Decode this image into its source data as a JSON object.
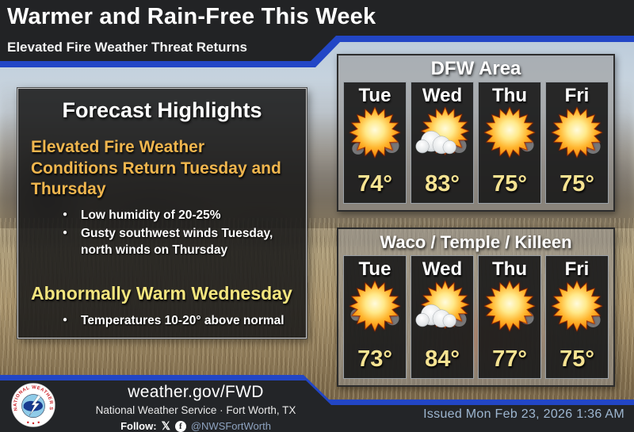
{
  "colors": {
    "accent_blue": "#2246c6",
    "banner_black": "#222325",
    "gold_heading": "#f0b64e",
    "pale_yellow_heading": "#f3e57e",
    "temp_yellow": "#f6e392",
    "issued_text": "#9db6d0"
  },
  "header": {
    "title": "Warmer and Rain-Free This Week",
    "subtitle": "Elevated Fire Weather Threat Returns"
  },
  "highlights": {
    "title": "Forecast Highlights",
    "sections": [
      {
        "heading": "Elevated Fire Weather Conditions Return Tuesday and Thursday",
        "bullets": [
          "Low humidity of 20-25%",
          "Gusty southwest winds Tuesday, north winds on Thursday"
        ]
      },
      {
        "heading": "Abnormally Warm Wednesday",
        "bullets": [
          "Temperatures 10-20° above normal"
        ]
      }
    ]
  },
  "forecast_panels": [
    {
      "title": "DFW Area",
      "days": [
        {
          "label": "Tue",
          "icon": "sunny",
          "temp": "74°"
        },
        {
          "label": "Wed",
          "icon": "mostly-sunny",
          "temp": "83°"
        },
        {
          "label": "Thu",
          "icon": "sunny",
          "temp": "75°"
        },
        {
          "label": "Fri",
          "icon": "sunny",
          "temp": "75°"
        }
      ]
    },
    {
      "title": "Waco / Temple / Killeen",
      "days": [
        {
          "label": "Tue",
          "icon": "sunny",
          "temp": "73°"
        },
        {
          "label": "Wed",
          "icon": "mostly-sunny",
          "temp": "84°"
        },
        {
          "label": "Thu",
          "icon": "sunny",
          "temp": "77°"
        },
        {
          "label": "Fri",
          "icon": "sunny",
          "temp": "75°"
        }
      ]
    }
  ],
  "footer": {
    "website": "weather.gov/FWD",
    "organization": "National Weather Service · Fort Worth, TX",
    "follow_label": "Follow:",
    "social_handle": "@NWSFortWorth",
    "issued": "Issued Mon Feb 23, 2026 1:36 AM",
    "logo_ring_text": "NATIONAL WEATHER SERVICE"
  }
}
